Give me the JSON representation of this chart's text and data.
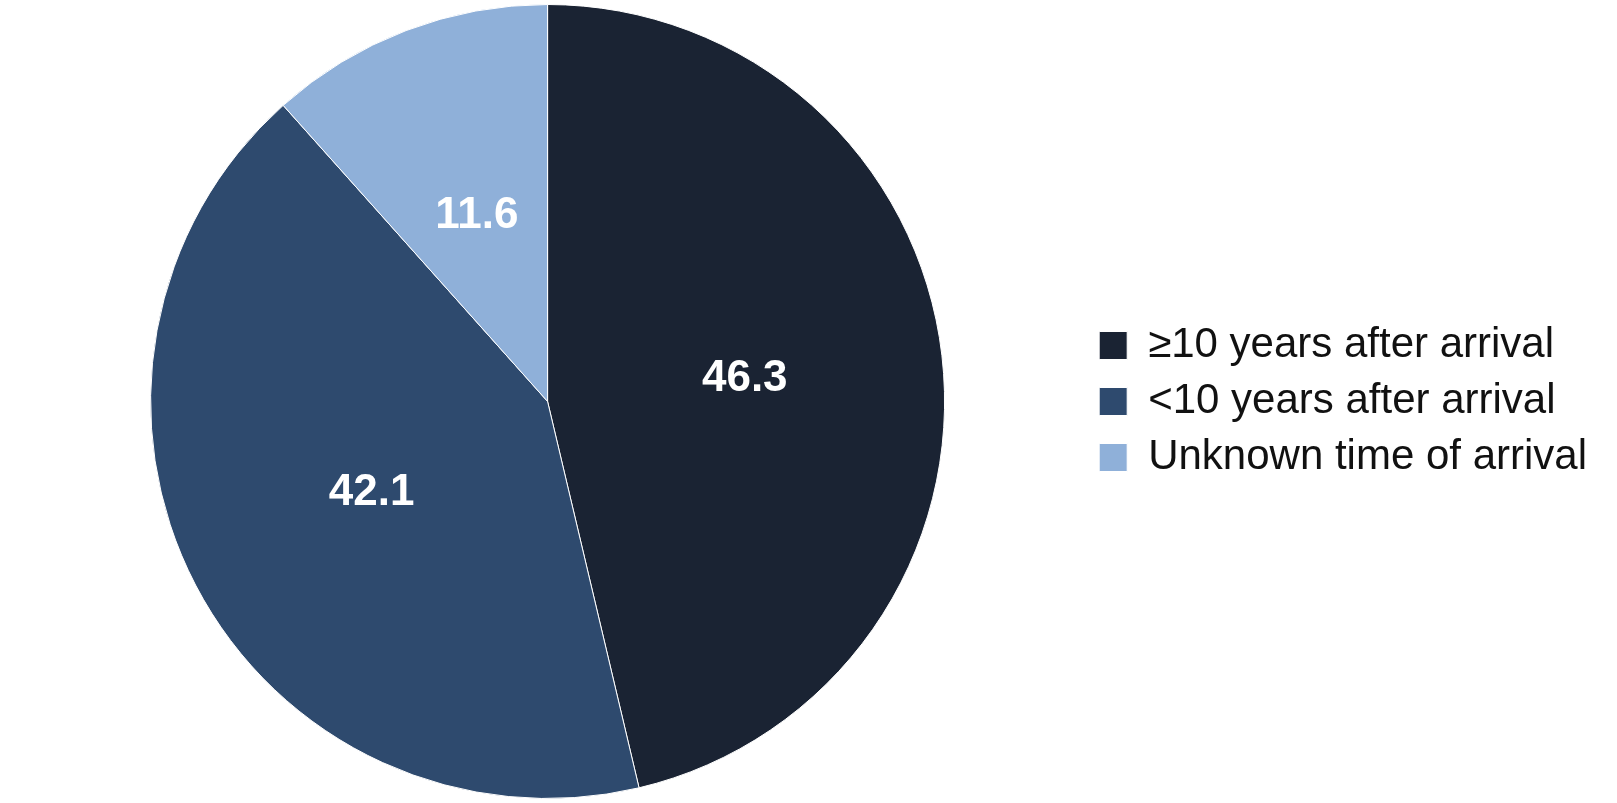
{
  "chart_data": {
    "type": "pie",
    "categories": [
      "≥10 years after arrival",
      "<10 years after arrival",
      "Unknown time of arrival"
    ],
    "values": [
      46.3,
      42.1,
      11.6
    ],
    "colors": [
      "#1a2333",
      "#2e4a6e",
      "#8fb0d9"
    ],
    "data_labels": true,
    "legend": "right"
  }
}
